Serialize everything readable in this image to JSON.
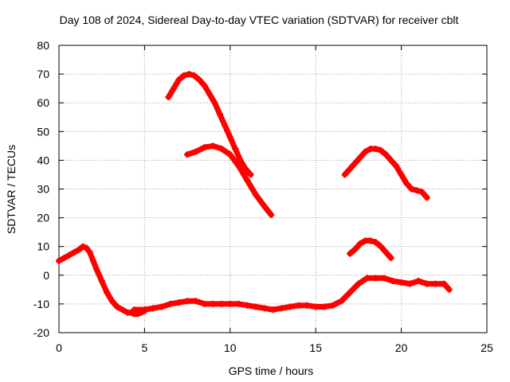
{
  "chart_data": {
    "type": "scatter",
    "title": "Day 108 of 2024, Sidereal Day-to-day VTEC variation (SDTVAR) for receiver cblt",
    "xlabel": "GPS time / hours",
    "ylabel": "SDTVAR / TECUs",
    "xlim": [
      0,
      25
    ],
    "ylim": [
      -20,
      80
    ],
    "xticks": [
      0,
      5,
      10,
      15,
      20,
      25
    ],
    "yticks": [
      -20,
      -10,
      0,
      10,
      20,
      30,
      40,
      50,
      60,
      70,
      80
    ],
    "xtick_labels": [
      "0",
      "5",
      "10",
      "15",
      "20",
      "25"
    ],
    "ytick_labels": [
      "-20",
      "-10",
      "0",
      "10",
      "20",
      "30",
      "40",
      "50",
      "60",
      "70",
      "80"
    ],
    "grid": true,
    "marker": "plus",
    "color": "#ff0000",
    "series": [
      {
        "name": "arc-1",
        "x": [
          0.0,
          0.3,
          0.6,
          0.9,
          1.2,
          1.4,
          1.6,
          1.8,
          2.0,
          2.2,
          2.5,
          2.8,
          3.1,
          3.4,
          3.7,
          4.0,
          4.2,
          4.4,
          4.6,
          4.8,
          5.0
        ],
        "y": [
          5,
          6,
          7,
          8,
          9,
          10,
          9.5,
          8,
          5,
          2,
          -2,
          -6,
          -9,
          -11,
          -12,
          -13,
          -13,
          -13.5,
          -13.5,
          -13,
          -12.5
        ]
      },
      {
        "name": "arc-2",
        "x": [
          4.4,
          5.0,
          5.5,
          6.0,
          6.5,
          7.0,
          7.5,
          8.0,
          8.5,
          9.0,
          9.5,
          10.0,
          10.5,
          11.0,
          11.5,
          12.0,
          12.5,
          13.0,
          13.5,
          14.0,
          14.5,
          15.0,
          15.5,
          16.0,
          16.5,
          17.0,
          17.5,
          18.0,
          18.5,
          19.0,
          19.5,
          20.0,
          20.5,
          21.0,
          21.5,
          22.0,
          22.5,
          22.8
        ],
        "y": [
          -12,
          -12,
          -11.5,
          -11,
          -10,
          -9.5,
          -9,
          -9,
          -10,
          -10,
          -10,
          -10,
          -10,
          -10.5,
          -11,
          -11.5,
          -12,
          -11.5,
          -11,
          -10.5,
          -10.5,
          -11,
          -11,
          -10.5,
          -9,
          -6,
          -3,
          -1,
          -1,
          -1,
          -2,
          -2.5,
          -3,
          -2,
          -3,
          -3,
          -3,
          -5
        ]
      },
      {
        "name": "arc-3",
        "x": [
          6.4,
          6.7,
          7.0,
          7.3,
          7.6,
          7.9,
          8.2,
          8.5,
          8.8,
          9.1,
          9.4,
          9.7,
          10.0,
          10.3,
          10.6,
          10.9,
          11.2
        ],
        "y": [
          62,
          65,
          68,
          69.5,
          70,
          69.5,
          68,
          66,
          63,
          60,
          56,
          52,
          48,
          44,
          40,
          37,
          35
        ]
      },
      {
        "name": "arc-4",
        "x": [
          7.5,
          8.0,
          8.5,
          9.0,
          9.5,
          10.0,
          10.5,
          11.0,
          11.5,
          12.0,
          12.4
        ],
        "y": [
          42,
          43,
          44.5,
          45,
          44,
          42,
          38,
          33,
          28,
          24,
          21
        ]
      },
      {
        "name": "arc-5",
        "x": [
          16.7,
          17.0,
          17.3,
          17.6,
          17.9,
          18.2,
          18.5,
          18.8,
          19.1,
          19.4,
          19.7,
          20.0,
          20.3,
          20.6,
          20.9,
          21.2,
          21.5
        ],
        "y": [
          35,
          37,
          39,
          41,
          43,
          44,
          44,
          43.5,
          42,
          40,
          38,
          35,
          32,
          30,
          29.5,
          29,
          27
        ]
      },
      {
        "name": "arc-6",
        "x": [
          17.0,
          17.3,
          17.6,
          17.9,
          18.2,
          18.5,
          18.8,
          19.1,
          19.4
        ],
        "y": [
          7.5,
          9,
          11,
          12,
          12,
          11.5,
          10,
          8,
          6
        ]
      }
    ]
  }
}
